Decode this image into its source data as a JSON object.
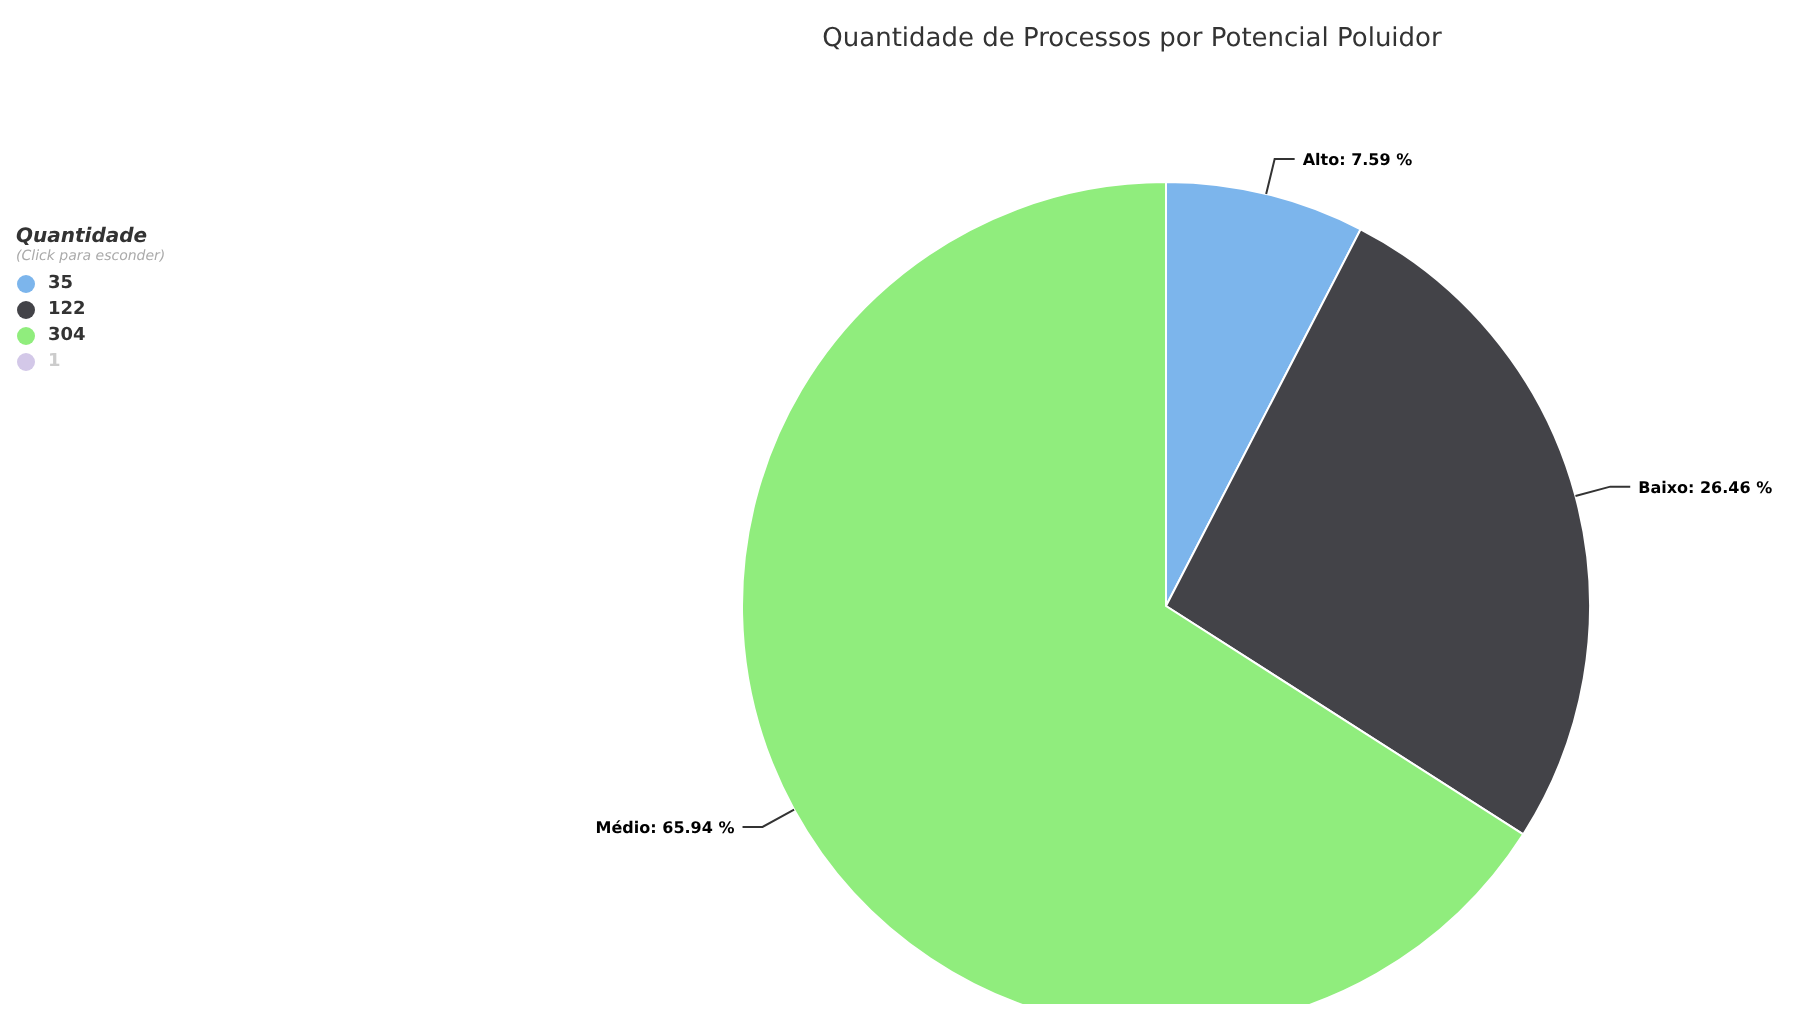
{
  "chart_data": {
    "type": "pie",
    "title": "Quantidade de Processos por Potencial Poluidor",
    "legend_title": "Quantidade",
    "annotations": [
      "(Click para esconder)",
      "35",
      "122",
      "304",
      "1"
    ],
    "categories": [
      "Alto",
      "Baixo",
      "Médio"
    ],
    "values": [
      7.59,
      26.46,
      65.94
    ],
    "colors": [
      "#7cb5ec",
      "#434348",
      "#90ed7d"
    ],
    "value_labels": [
      "7.59 %",
      "26.46 %",
      "65.94 %"
    ]
  }
}
